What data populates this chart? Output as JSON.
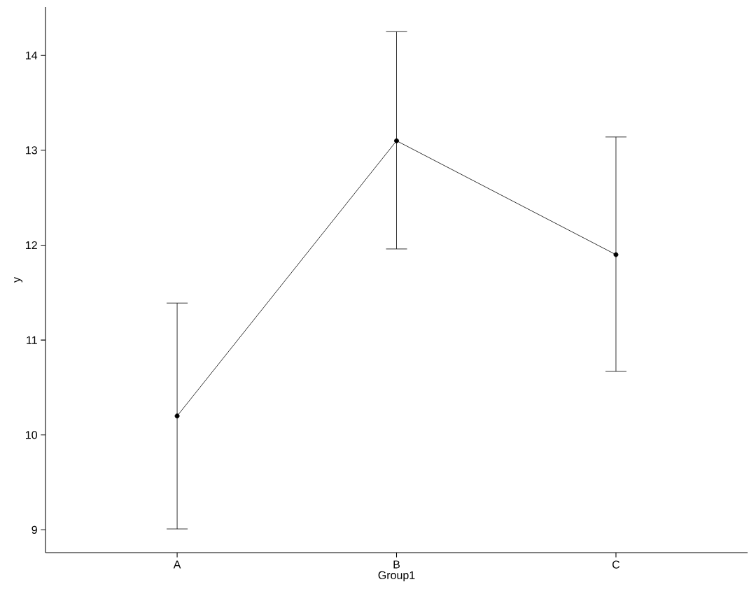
{
  "chart_data": {
    "type": "line",
    "xlabel": "Group1",
    "ylabel": "y",
    "categories": [
      "A",
      "B",
      "C"
    ],
    "values": [
      10.2,
      13.1,
      11.9
    ],
    "errors": [
      [
        9.01,
        11.39
      ],
      [
        11.96,
        14.25
      ],
      [
        10.67,
        13.14
      ]
    ],
    "color": "#000000",
    "marker": "circle",
    "line_style": "solid",
    "ylim": [
      8.76,
      14.51
    ],
    "yticks": [
      9,
      10,
      11,
      12,
      13,
      14
    ]
  }
}
